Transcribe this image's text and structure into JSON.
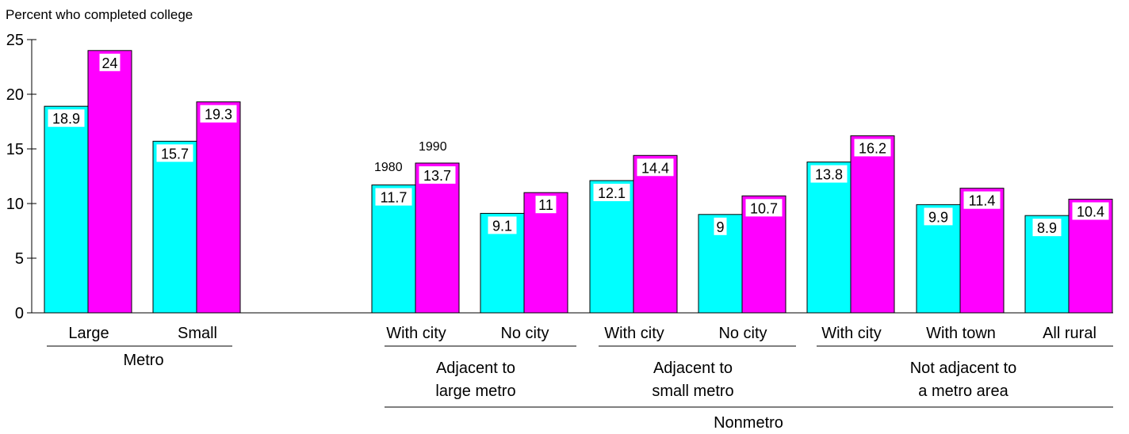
{
  "chart_data": {
    "type": "bar",
    "ylabel": "Percent who completed college",
    "ylim": [
      0,
      25
    ],
    "yticks": [
      0,
      5,
      10,
      15,
      20,
      25
    ],
    "grid": false,
    "series": [
      {
        "name": "1980",
        "color": "#00ffff"
      },
      {
        "name": "1990",
        "color": "#ff00ff"
      }
    ],
    "categories": [
      {
        "label": "Large",
        "v1980": 18.9,
        "v1990": 24
      },
      {
        "label": "Small",
        "v1980": 15.7,
        "v1990": 19.3
      },
      {
        "label": "With city",
        "v1980": 11.7,
        "v1990": 13.7
      },
      {
        "label": "No city",
        "v1980": 9.1,
        "v1990": 11
      },
      {
        "label": "With city",
        "v1980": 12.1,
        "v1990": 14.4
      },
      {
        "label": "No city",
        "v1980": 9,
        "v1990": 10.7
      },
      {
        "label": "With city",
        "v1980": 13.8,
        "v1990": 16.2
      },
      {
        "label": "With town",
        "v1980": 9.9,
        "v1990": 11.4
      },
      {
        "label": "All rural",
        "v1980": 8.9,
        "v1990": 10.4
      }
    ],
    "groups": [
      {
        "lines": [
          "Metro"
        ]
      },
      {
        "lines": [
          "Adjacent to",
          "large metro"
        ]
      },
      {
        "lines": [
          "Adjacent to",
          "small metro"
        ]
      },
      {
        "lines": [
          "Not adjacent to",
          "a metro area"
        ]
      },
      {
        "lines": [
          "Nonmetro"
        ]
      }
    ]
  }
}
